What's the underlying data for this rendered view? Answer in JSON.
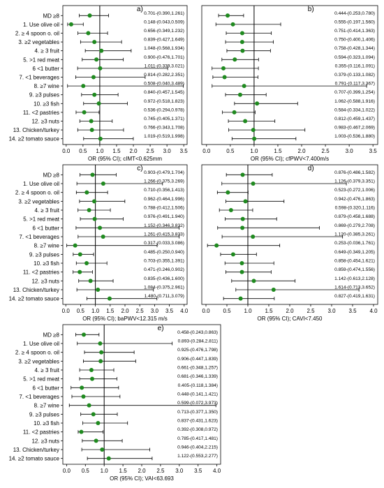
{
  "categories": [
    "MD ≥8",
    "1. Use olive oil",
    "2. ≥ 4 spoon o. oil",
    "3. ≥2 vegetables",
    "4. ≥ 3 fruit",
    "5. >1 red meat",
    "6 <1 butter",
    "7. <1 beverages",
    "8. ≥7 wine",
    "9. ≥3 pulses",
    "10. ≥3 fish",
    "11. <2 pastries",
    "12. ≥3 nuts",
    "13. Chicken/turkey",
    "14. ≥2 tomato sauce"
  ],
  "colors": {
    "point": "#1f8a1f",
    "line": "#000000",
    "ref_line": "#000000"
  },
  "chart_data": [
    {
      "type": "forest",
      "panel_label": "a)",
      "xlabel": "OR (95% CI); cIMT<0.625mm",
      "xlim": [
        -0.1,
        3.6
      ],
      "xticks": [
        0.0,
        0.5,
        1.0,
        1.5,
        2.0,
        2.5,
        3.0,
        3.5
      ],
      "ref_line": 1.0,
      "estimates": [
        {
          "or": 0.701,
          "lo": 0.39,
          "hi": 1.261,
          "label": "0.701-(0.390,1.261)"
        },
        {
          "or": 0.148,
          "lo": 0.043,
          "hi": 0.509,
          "label": "0.148-(0.043,0.509)"
        },
        {
          "or": 0.656,
          "lo": 0.349,
          "hi": 1.232,
          "label": "0.656-(0.349,1.232)"
        },
        {
          "or": 0.839,
          "lo": 0.427,
          "hi": 1.649,
          "label": "0.839-(0.427,1.649)"
        },
        {
          "or": 1.048,
          "lo": 0.568,
          "hi": 1.934,
          "label": "1.048-(0.568,1.934)"
        },
        {
          "or": 0.9,
          "lo": 0.476,
          "hi": 1.701,
          "label": "0.900-(0.476,1.701)"
        },
        {
          "or": 1.011,
          "lo": 0.339,
          "hi": 3.021,
          "label": "1.011-(0.339,3.021)"
        },
        {
          "or": 0.814,
          "lo": 0.282,
          "hi": 2.351,
          "label": "0.814-(0.282,2.351)"
        },
        {
          "or": 0.508,
          "lo": 0.04,
          "hi": 3.489,
          "label": "0.508-(0.040,3.489)"
        },
        {
          "or": 0.84,
          "lo": 0.457,
          "hi": 1.545,
          "label": "0.840-(0.457,1.545)"
        },
        {
          "or": 0.972,
          "lo": 0.518,
          "hi": 1.823,
          "label": "0.972-(0.518,1.823)"
        },
        {
          "or": 0.536,
          "lo": 0.294,
          "hi": 0.978,
          "label": "0.536-(0.294,0.978)"
        },
        {
          "or": 0.745,
          "lo": 0.405,
          "hi": 1.371,
          "label": "0.745-(0.405,1.371)"
        },
        {
          "or": 0.766,
          "lo": 0.343,
          "hi": 1.708,
          "label": "0.766-(0.343,1.708)"
        },
        {
          "or": 1.019,
          "lo": 0.519,
          "hi": 1.998,
          "label": "1.019-(0.519,1.998)"
        }
      ]
    },
    {
      "type": "forest",
      "panel_label": "b)",
      "xlabel": "OR (95% CI); cfPWV<7.400m/s",
      "xlim": [
        -0.1,
        3.6
      ],
      "xticks": [
        0.0,
        0.5,
        1.0,
        1.5,
        2.0,
        2.5,
        3.0,
        3.5
      ],
      "ref_line": 1.0,
      "estimates": [
        {
          "or": 0.444,
          "lo": 0.253,
          "hi": 0.78,
          "label": "0.444-(0.253,0.780)"
        },
        {
          "or": 0.555,
          "lo": 0.197,
          "hi": 1.56,
          "label": "0.555-(0.197,1.560)"
        },
        {
          "or": 0.751,
          "lo": 0.414,
          "hi": 1.363,
          "label": "0.751-(0.414,1.363)"
        },
        {
          "or": 0.75,
          "lo": 0.4,
          "hi": 1.406,
          "label": "0.750-(0.400,1.406)"
        },
        {
          "or": 0.758,
          "lo": 0.428,
          "hi": 1.344,
          "label": "0.758-(0.428,1.344)"
        },
        {
          "or": 0.594,
          "lo": 0.323,
          "hi": 1.094,
          "label": "0.594-(0.323,1.094)"
        },
        {
          "or": 0.355,
          "lo": 0.116,
          "hi": 1.091,
          "label": "0.355-(0.116,1.091)"
        },
        {
          "or": 0.379,
          "lo": 0.133,
          "hi": 1.082,
          "label": "0.379-(0.133,1.082)"
        },
        {
          "or": 0.791,
          "lo": 0.117,
          "hi": 3.367,
          "label": "0.791-(0.117,3.367)"
        },
        {
          "or": 0.707,
          "lo": 0.399,
          "hi": 1.254,
          "label": "0.707-(0.399,1.254)"
        },
        {
          "or": 1.062,
          "lo": 0.588,
          "hi": 1.916,
          "label": "1.062-(0.588,1.916)"
        },
        {
          "or": 0.584,
          "lo": 0.334,
          "hi": 1.022,
          "label": "0.584-(0.334,1.022)"
        },
        {
          "or": 0.812,
          "lo": 0.459,
          "hi": 1.437,
          "label": "0.812-(0.459,1.437)"
        },
        {
          "or": 0.983,
          "lo": 0.467,
          "hi": 2.069,
          "label": "0.983-(0.467,2.069)"
        },
        {
          "or": 1.003,
          "lo": 0.536,
          "hi": 1.88,
          "label": "1.003-(0.536,1.880)"
        }
      ]
    },
    {
      "type": "forest",
      "panel_label": "c)",
      "xlabel": "OR (95% CI); baPWV<12.315 m/s",
      "xlim": [
        -0.1,
        4.1
      ],
      "xticks": [
        0.0,
        0.5,
        1.0,
        1.5,
        2.0,
        2.5,
        3.0,
        3.5,
        4.0
      ],
      "ref_line": 1.0,
      "estimates": [
        {
          "or": 0.903,
          "lo": 0.479,
          "hi": 1.704,
          "label": "0.903-(0.479,1.704)"
        },
        {
          "or": 1.266,
          "lo": 0.375,
          "hi": 3.269,
          "label": "1.266-(0.375,3.269)"
        },
        {
          "or": 0.71,
          "lo": 0.356,
          "hi": 1.413,
          "label": "0.710-(0.356,1.413)"
        },
        {
          "or": 0.962,
          "lo": 0.464,
          "hi": 1.996,
          "label": "0.962-(0.464,1.996)"
        },
        {
          "or": 0.788,
          "lo": 0.412,
          "hi": 1.506,
          "label": "0.788-(0.412,1.506)"
        },
        {
          "or": 0.976,
          "lo": 0.491,
          "hi": 1.94,
          "label": "0.976-(0.491,1.940)"
        },
        {
          "or": 1.152,
          "lo": 0.346,
          "hi": 3.832,
          "label": "1.152-(0.346,3.832)"
        },
        {
          "or": 1.261,
          "lo": 0.415,
          "hi": 3.833,
          "label": "1.261-(0.415,3.833)"
        },
        {
          "or": 0.317,
          "lo": 0.033,
          "hi": 3.086,
          "label": "0.317-(0.033,3.086)"
        },
        {
          "or": 0.485,
          "lo": 0.25,
          "hi": 0.94,
          "label": "0.485-(0.250,0.940)"
        },
        {
          "or": 0.703,
          "lo": 0.355,
          "hi": 1.391,
          "label": "0.703-(0.355,1.391)"
        },
        {
          "or": 0.471,
          "lo": 0.246,
          "hi": 0.902,
          "label": "0.471-(0.246,0.902)"
        },
        {
          "or": 0.835,
          "lo": 0.436,
          "hi": 1.6,
          "label": "0.835-(0.436,1.600)"
        },
        {
          "or": 1.084,
          "lo": 0.375,
          "hi": 2.961,
          "label": "1.084-(0.375,2.961)"
        },
        {
          "or": 1.48,
          "lo": 0.711,
          "hi": 3.079,
          "label": "1.480-(0.711,3.079)"
        }
      ]
    },
    {
      "type": "forest",
      "panel_label": "d)",
      "xlabel": "OR (95% CI); CAVI<7.450",
      "xlim": [
        -0.1,
        4.1
      ],
      "xticks": [
        0.0,
        0.5,
        1.0,
        1.5,
        2.0,
        2.5,
        3.0,
        3.5,
        4.0
      ],
      "ref_line": 1.0,
      "estimates": [
        {
          "or": 0.876,
          "lo": 0.486,
          "hi": 1.582,
          "label": "0.876-(0.486,1.582)"
        },
        {
          "or": 1.126,
          "lo": 0.379,
          "hi": 3.351,
          "label": "1.126-(0.379,3.351)"
        },
        {
          "or": 0.523,
          "lo": 0.272,
          "hi": 1.006,
          "label": "0.523-(0.272,1.006)"
        },
        {
          "or": 0.942,
          "lo": 0.476,
          "hi": 1.863,
          "label": "0.942-(0.476,1.863)"
        },
        {
          "or": 0.598,
          "lo": 0.32,
          "hi": 1.116,
          "label": "0.598-(0.320,1.116)"
        },
        {
          "or": 0.879,
          "lo": 0.458,
          "hi": 1.688,
          "label": "0.879-(0.458,1.688)"
        },
        {
          "or": 0.869,
          "lo": 0.279,
          "hi": 2.708,
          "label": "0.869-(0.279,2.708)"
        },
        {
          "or": 1.12,
          "lo": 0.385,
          "hi": 3.261,
          "label": "1.120-(0.385,3.261)"
        },
        {
          "or": 0.253,
          "lo": 0.036,
          "hi": 1.761,
          "label": "0.253-(0.036,1.761)"
        },
        {
          "or": 0.649,
          "lo": 0.349,
          "hi": 1.205,
          "label": "0.649-(0.349,1.205)"
        },
        {
          "or": 0.858,
          "lo": 0.454,
          "hi": 1.621,
          "label": "0.858-(0.454,1.621)"
        },
        {
          "or": 0.859,
          "lo": 0.474,
          "hi": 1.556,
          "label": "0.859-(0.474,1.556)"
        },
        {
          "or": 1.142,
          "lo": 0.613,
          "hi": 2.128,
          "label": "1.142-(0.613,2.128)"
        },
        {
          "or": 1.614,
          "lo": 0.713,
          "hi": 3.652,
          "label": "1.614-(0.713,3.652)"
        },
        {
          "or": 0.827,
          "lo": 0.419,
          "hi": 1.631,
          "label": "0.827-(0.419,1.631)"
        }
      ]
    },
    {
      "type": "forest",
      "panel_label": "e)",
      "xlabel": "OR (95% CI); VAI<63.693",
      "xlim": [
        -0.1,
        4.1
      ],
      "xticks": [
        0.0,
        0.5,
        1.0,
        1.5,
        2.0,
        2.5,
        3.0,
        3.5,
        4.0
      ],
      "ref_line": 1.0,
      "estimates": [
        {
          "or": 0.458,
          "lo": 0.243,
          "hi": 0.863,
          "label": "0.458-(0.243,0.863)"
        },
        {
          "or": 0.893,
          "lo": 0.284,
          "hi": 2.811,
          "label": "0.893-(0.284,2.811)"
        },
        {
          "or": 0.925,
          "lo": 0.476,
          "hi": 1.798,
          "label": "0.925-(0.476,1.798)"
        },
        {
          "or": 0.906,
          "lo": 0.447,
          "hi": 1.839,
          "label": "0.906-(0.447,1.839)"
        },
        {
          "or": 0.661,
          "lo": 0.348,
          "hi": 1.257,
          "label": "0.661-(0.348,1.257)"
        },
        {
          "or": 0.681,
          "lo": 0.346,
          "hi": 1.339,
          "label": "0.681-(0.346,1.339)"
        },
        {
          "or": 0.405,
          "lo": 0.118,
          "hi": 1.384,
          "label": "0.405-(0.118,1.384)"
        },
        {
          "or": 0.448,
          "lo": 0.141,
          "hi": 1.421,
          "label": "0.448-(0.141,1.421)"
        },
        {
          "or": 0.599,
          "lo": 0.072,
          "hi": 3.973,
          "label": "0.599-(0.072,3.973)"
        },
        {
          "or": 0.713,
          "lo": 0.377,
          "hi": 1.35,
          "label": "0.713-(0.377,1.350)"
        },
        {
          "or": 0.837,
          "lo": 0.431,
          "hi": 1.623,
          "label": "0.837-(0.431,1.623)"
        },
        {
          "or": 0.392,
          "lo": 0.308,
          "hi": 0.972,
          "label": "0.392-(0.308,0.972)"
        },
        {
          "or": 0.785,
          "lo": 0.417,
          "hi": 1.481,
          "label": "0.785-(0.417,1.481)"
        },
        {
          "or": 0.946,
          "lo": 0.404,
          "hi": 2.215,
          "label": "0.946-(0.404,2.215)"
        },
        {
          "or": 1.122,
          "lo": 0.553,
          "hi": 2.277,
          "label": "1.122-(0.553,2.277)"
        }
      ]
    }
  ]
}
